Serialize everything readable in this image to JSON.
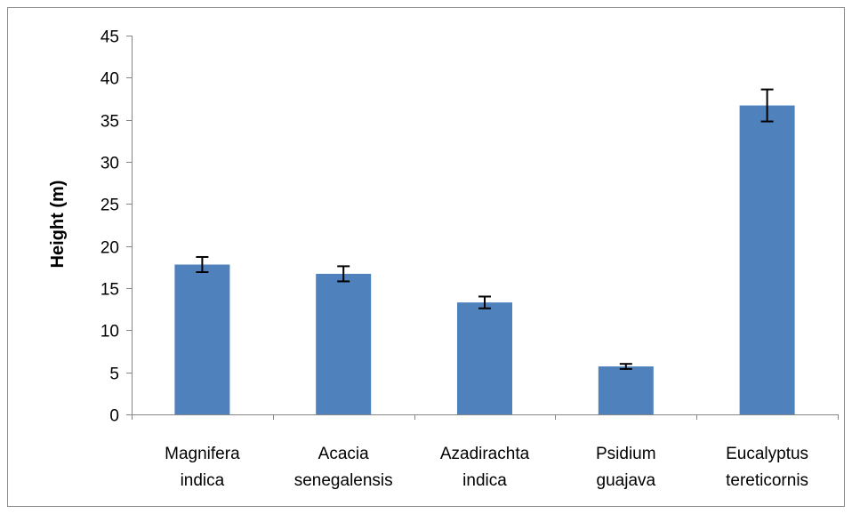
{
  "chart_data": {
    "type": "bar",
    "title": "",
    "xlabel": "",
    "ylabel": "Height (m)",
    "ylim": [
      0,
      45
    ],
    "yticks": [
      0,
      5,
      10,
      15,
      20,
      25,
      30,
      35,
      40,
      45
    ],
    "grid": false,
    "legend": "none",
    "bar_color": "#4F81BD",
    "categories": [
      [
        "Magnifera",
        "indica"
      ],
      [
        "Acacia",
        "senegalensis"
      ],
      [
        "Azadirachta",
        "indica"
      ],
      [
        "Psidium",
        "guajava"
      ],
      [
        "Eucalyptus",
        "tereticornis"
      ]
    ],
    "values": [
      17.8,
      16.7,
      13.3,
      5.7,
      36.7
    ],
    "error_bars": [
      0.9,
      0.9,
      0.7,
      0.3,
      1.9
    ]
  }
}
